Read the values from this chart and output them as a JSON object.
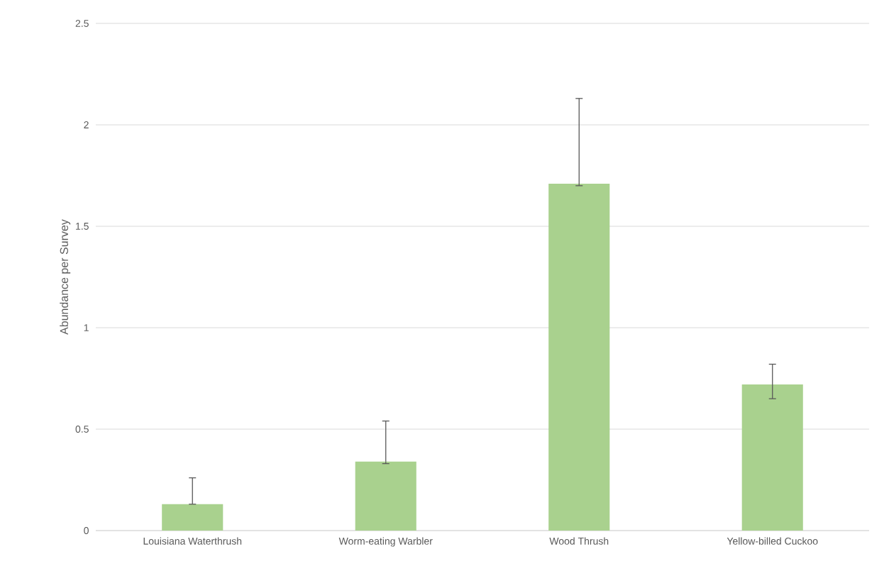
{
  "chart_data": {
    "type": "bar",
    "ylabel": "Abundance per Survey",
    "categories": [
      "Louisiana Waterthrush",
      "Worm-eating Warbler",
      "Wood Thrush",
      "Yellow-billed Cuckoo"
    ],
    "values": [
      0.13,
      0.34,
      1.71,
      0.72
    ],
    "errors": [
      [
        0.13,
        0.26
      ],
      [
        0.33,
        0.54
      ],
      [
        1.7,
        2.13
      ],
      [
        0.65,
        0.82
      ]
    ],
    "color": "#a9d18e",
    "ylim": [
      0,
      2.5
    ],
    "yticks": [
      0,
      0.5,
      1,
      1.5,
      2,
      2.5
    ],
    "grid": "y"
  }
}
